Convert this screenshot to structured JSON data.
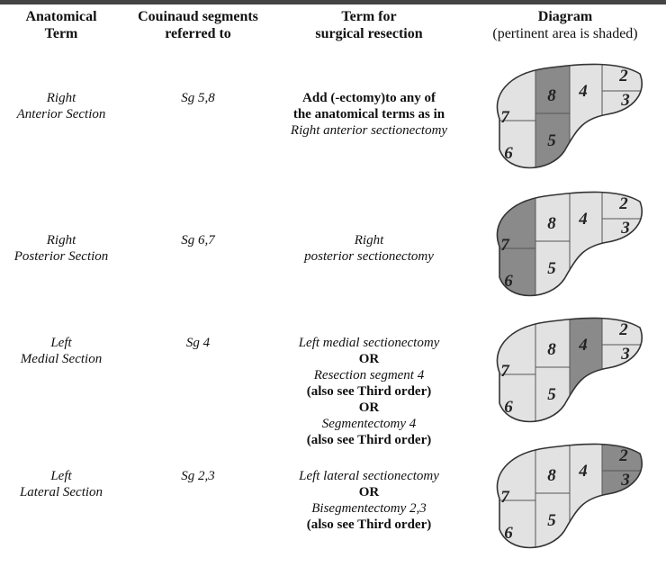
{
  "header": {
    "columns": [
      [
        "Anatomical",
        "Term"
      ],
      [
        "Couinaud segments",
        "referred to"
      ],
      [
        "Term for",
        "surgical resection"
      ],
      [
        "Diagram",
        "(pertinent area is shaded)"
      ]
    ]
  },
  "diagram_segments": [
    "2",
    "3",
    "4",
    "5",
    "6",
    "7",
    "8"
  ],
  "rows": [
    {
      "term": [
        "Right",
        "Anterior Section"
      ],
      "segments": "Sg 5,8",
      "resection": [
        {
          "text": "Add (-ectomy)to any of",
          "italic": false
        },
        {
          "text": "the anatomical terms as in",
          "italic": false
        },
        {
          "text": "Right anterior sectionectomy",
          "italic": true
        }
      ],
      "shaded": [
        "5",
        "8"
      ]
    },
    {
      "term": [
        "Right",
        "Posterior Section"
      ],
      "segments": "Sg 6,7",
      "resection": [
        {
          "text": "Right",
          "italic": true
        },
        {
          "text": "posterior sectionectomy",
          "italic": true
        }
      ],
      "shaded": [
        "6",
        "7"
      ]
    },
    {
      "term": [
        "Left",
        "Medial Section"
      ],
      "segments": "Sg 4",
      "resection": [
        {
          "text": "Left medial sectionectomy",
          "italic": true
        },
        {
          "text": "OR",
          "italic": false
        },
        {
          "text": "Resection segment 4",
          "italic": true
        },
        {
          "text": "(also see Third order)",
          "italic": false
        },
        {
          "text": "OR",
          "italic": false
        },
        {
          "text": "Segmentectomy 4",
          "italic": true
        },
        {
          "text": "(also see Third order)",
          "italic": false
        }
      ],
      "shaded": [
        "4"
      ]
    },
    {
      "term": [
        "Left",
        "Lateral Section"
      ],
      "segments": "Sg 2,3",
      "resection": [
        {
          "text": "Left lateral sectionectomy",
          "italic": true
        },
        {
          "text": "OR",
          "italic": false
        },
        {
          "text": "Bisegmentectomy 2,3",
          "italic": true
        },
        {
          "text": "(also see Third order)",
          "italic": false
        }
      ],
      "shaded": [
        "2",
        "3"
      ]
    }
  ]
}
